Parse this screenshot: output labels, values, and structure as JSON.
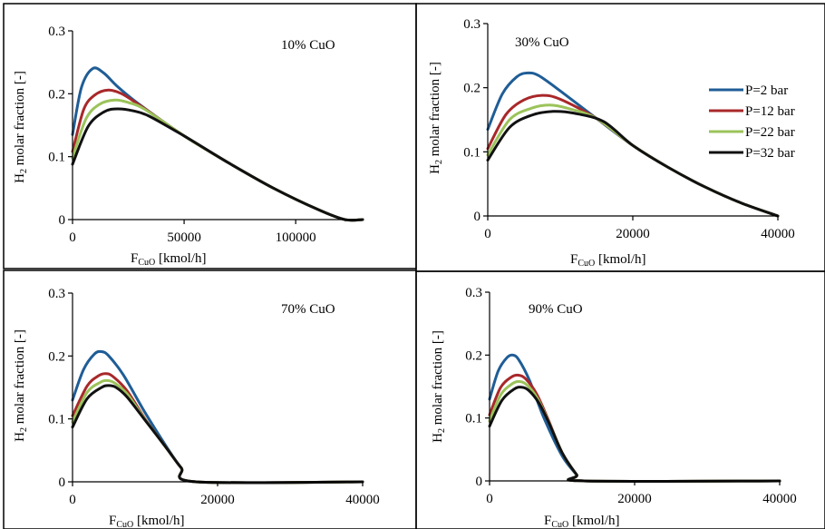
{
  "chart_data": [
    {
      "type": "line",
      "annotation": "10% CuO",
      "ylabel_main": "H",
      "ylabel_sub": "2",
      "ylabel_rest": " molar fraction [-]",
      "xlabel_main": "F",
      "xlabel_sub": "CuO",
      "xlabel_rest": " [kmol/h]",
      "xlim": [
        0,
        130000
      ],
      "ylim": [
        0,
        0.3
      ],
      "xticks": [
        0,
        50000,
        100000
      ],
      "xtick_labels": [
        "0",
        "50000",
        "100000"
      ],
      "yticks": [
        0,
        0.1,
        0.2,
        0.3
      ],
      "ytick_labels": [
        "0",
        "0.1",
        "0.2",
        "0.3"
      ],
      "grid": false,
      "series": [
        {
          "name": "P=2 bar",
          "color": "#1f5d96",
          "points": [
            [
              0,
              0.135
            ],
            [
              4000,
              0.21
            ],
            [
              9000,
              0.24
            ],
            [
              14000,
              0.233
            ],
            [
              20000,
              0.212
            ],
            [
              30000,
              0.183
            ],
            [
              50000,
              0.133
            ],
            [
              70000,
              0.09
            ],
            [
              90000,
              0.05
            ],
            [
              110000,
              0.016
            ],
            [
              122000,
              0
            ],
            [
              130000,
              0
            ]
          ]
        },
        {
          "name": "P=12 bar",
          "color": "#a8282a",
          "points": [
            [
              0,
              0.108
            ],
            [
              5000,
              0.175
            ],
            [
              10000,
              0.198
            ],
            [
              16000,
              0.206
            ],
            [
              22000,
              0.2
            ],
            [
              30000,
              0.182
            ],
            [
              50000,
              0.133
            ],
            [
              70000,
              0.09
            ],
            [
              90000,
              0.05
            ],
            [
              110000,
              0.016
            ],
            [
              122000,
              0
            ],
            [
              130000,
              0
            ]
          ]
        },
        {
          "name": "P=22 bar",
          "color": "#9bc35a",
          "points": [
            [
              0,
              0.098
            ],
            [
              6000,
              0.16
            ],
            [
              12000,
              0.183
            ],
            [
              19000,
              0.19
            ],
            [
              25000,
              0.186
            ],
            [
              32000,
              0.176
            ],
            [
              50000,
              0.133
            ],
            [
              70000,
              0.09
            ],
            [
              90000,
              0.05
            ],
            [
              110000,
              0.016
            ],
            [
              122000,
              0
            ],
            [
              130000,
              0
            ]
          ]
        },
        {
          "name": "P=32 bar",
          "color": "#111111",
          "points": [
            [
              0,
              0.088
            ],
            [
              7000,
              0.148
            ],
            [
              14000,
              0.171
            ],
            [
              20000,
              0.176
            ],
            [
              27000,
              0.173
            ],
            [
              34000,
              0.165
            ],
            [
              50000,
              0.133
            ],
            [
              70000,
              0.09
            ],
            [
              90000,
              0.05
            ],
            [
              110000,
              0.016
            ],
            [
              122000,
              0
            ],
            [
              130000,
              0
            ]
          ]
        }
      ]
    },
    {
      "type": "line",
      "annotation": "30% CuO",
      "ylabel_main": "H",
      "ylabel_sub": "2",
      "ylabel_rest": " molar fraction [-]",
      "xlabel_main": "F",
      "xlabel_sub": "CuO",
      "xlabel_rest": " [kmol/h]",
      "xlim": [
        0,
        40000
      ],
      "ylim": [
        0,
        0.3
      ],
      "xticks": [
        0,
        20000,
        40000
      ],
      "xtick_labels": [
        "0",
        "20000",
        "40000"
      ],
      "yticks": [
        0,
        0.1,
        0.2,
        0.3
      ],
      "ytick_labels": [
        "0",
        "0.1",
        "0.2",
        "0.3"
      ],
      "grid": false,
      "legend": {
        "placement": "right",
        "entries": [
          "P=2 bar",
          "P=12 bar",
          "P=22 bar",
          "P=32 bar"
        ]
      },
      "series": [
        {
          "name": "P=2 bar",
          "color": "#1f5d96",
          "points": [
            [
              0,
              0.135
            ],
            [
              2000,
              0.19
            ],
            [
              4000,
              0.217
            ],
            [
              5500,
              0.223
            ],
            [
              7000,
              0.219
            ],
            [
              10000,
              0.195
            ],
            [
              15000,
              0.152
            ],
            [
              20000,
              0.11
            ],
            [
              25000,
              0.075
            ],
            [
              30000,
              0.045
            ],
            [
              35000,
              0.02
            ],
            [
              40000,
              0
            ]
          ]
        },
        {
          "name": "P=12 bar",
          "color": "#a8282a",
          "points": [
            [
              0,
              0.105
            ],
            [
              2500,
              0.158
            ],
            [
              5000,
              0.181
            ],
            [
              7500,
              0.188
            ],
            [
              10000,
              0.182
            ],
            [
              15000,
              0.152
            ],
            [
              20000,
              0.11
            ],
            [
              25000,
              0.075
            ],
            [
              30000,
              0.045
            ],
            [
              35000,
              0.02
            ],
            [
              40000,
              0
            ]
          ]
        },
        {
          "name": "P=22 bar",
          "color": "#9bc35a",
          "points": [
            [
              0,
              0.095
            ],
            [
              3000,
              0.15
            ],
            [
              6000,
              0.168
            ],
            [
              8500,
              0.173
            ],
            [
              11000,
              0.168
            ],
            [
              15000,
              0.152
            ],
            [
              20000,
              0.11
            ],
            [
              25000,
              0.075
            ],
            [
              30000,
              0.045
            ],
            [
              35000,
              0.02
            ],
            [
              40000,
              0
            ]
          ]
        },
        {
          "name": "P=32 bar",
          "color": "#111111",
          "points": [
            [
              0,
              0.087
            ],
            [
              3000,
              0.138
            ],
            [
              6000,
              0.157
            ],
            [
              9000,
              0.163
            ],
            [
              12000,
              0.16
            ],
            [
              16000,
              0.147
            ],
            [
              20000,
              0.11
            ],
            [
              25000,
              0.075
            ],
            [
              30000,
              0.045
            ],
            [
              35000,
              0.02
            ],
            [
              40000,
              0
            ]
          ]
        }
      ]
    },
    {
      "type": "line",
      "annotation": "70% CuO",
      "ylabel_main": "H",
      "ylabel_sub": "2",
      "ylabel_rest": " molar fraction [-]",
      "xlabel_main": "F",
      "xlabel_sub": "CuO",
      "xlabel_rest": " [kmol/h]",
      "xlim": [
        0,
        40000
      ],
      "ylim": [
        0,
        0.3
      ],
      "xticks": [
        0,
        20000,
        40000
      ],
      "xtick_labels": [
        "0",
        "20000",
        "40000"
      ],
      "yticks": [
        0,
        0.1,
        0.2,
        0.3
      ],
      "ytick_labels": [
        "0",
        "0.1",
        "0.2",
        "0.3"
      ],
      "grid": false,
      "series": [
        {
          "name": "P=2 bar",
          "color": "#1f5d96",
          "points": [
            [
              0,
              0.13
            ],
            [
              1500,
              0.178
            ],
            [
              3000,
              0.203
            ],
            [
              4000,
              0.207
            ],
            [
              5000,
              0.2
            ],
            [
              7000,
              0.17
            ],
            [
              10000,
              0.11
            ],
            [
              13000,
              0.055
            ],
            [
              15000,
              0.022
            ],
            [
              17000,
              0
            ],
            [
              40000,
              0
            ]
          ]
        },
        {
          "name": "P=12 bar",
          "color": "#a8282a",
          "points": [
            [
              0,
              0.105
            ],
            [
              2000,
              0.152
            ],
            [
              3500,
              0.168
            ],
            [
              4500,
              0.172
            ],
            [
              5500,
              0.168
            ],
            [
              7500,
              0.145
            ],
            [
              10000,
              0.1
            ],
            [
              13000,
              0.053
            ],
            [
              15000,
              0.022
            ],
            [
              17000,
              0
            ],
            [
              40000,
              0
            ]
          ]
        },
        {
          "name": "P=22 bar",
          "color": "#9bc35a",
          "points": [
            [
              0,
              0.095
            ],
            [
              2000,
              0.142
            ],
            [
              3800,
              0.158
            ],
            [
              4800,
              0.161
            ],
            [
              5800,
              0.157
            ],
            [
              7500,
              0.14
            ],
            [
              10000,
              0.099
            ],
            [
              13000,
              0.053
            ],
            [
              15000,
              0.022
            ],
            [
              17000,
              0
            ],
            [
              40000,
              0
            ]
          ]
        },
        {
          "name": "P=32 bar",
          "color": "#111111",
          "points": [
            [
              0,
              0.087
            ],
            [
              2000,
              0.132
            ],
            [
              4000,
              0.15
            ],
            [
              5000,
              0.153
            ],
            [
              6000,
              0.15
            ],
            [
              7500,
              0.135
            ],
            [
              10000,
              0.098
            ],
            [
              13000,
              0.053
            ],
            [
              15000,
              0.022
            ],
            [
              17000,
              0
            ],
            [
              40000,
              0
            ]
          ]
        }
      ]
    },
    {
      "type": "line",
      "annotation": "90% CuO",
      "ylabel_main": "H",
      "ylabel_sub": "2",
      "ylabel_rest": " molar fraction [-]",
      "xlabel_main": "F",
      "xlabel_sub": "CuO",
      "xlabel_rest": " [kmol/h]",
      "xlim": [
        0,
        40000
      ],
      "ylim": [
        0,
        0.3
      ],
      "xticks": [
        0,
        20000,
        40000
      ],
      "xtick_labels": [
        "0",
        "20000",
        "40000"
      ],
      "yticks": [
        0,
        0.1,
        0.2,
        0.3
      ],
      "ytick_labels": [
        "0",
        "0.1",
        "0.2",
        "0.3"
      ],
      "grid": false,
      "series": [
        {
          "name": "P=2 bar",
          "color": "#1f5d96",
          "points": [
            [
              0,
              0.13
            ],
            [
              1200,
              0.175
            ],
            [
              2400,
              0.196
            ],
            [
              3200,
              0.2
            ],
            [
              4000,
              0.193
            ],
            [
              5500,
              0.16
            ],
            [
              7500,
              0.1
            ],
            [
              10000,
              0.04
            ],
            [
              12000,
              0.01
            ],
            [
              13000,
              0
            ],
            [
              40000,
              0
            ]
          ]
        },
        {
          "name": "P=12 bar",
          "color": "#a8282a",
          "points": [
            [
              0,
              0.105
            ],
            [
              1500,
              0.148
            ],
            [
              3000,
              0.165
            ],
            [
              4000,
              0.168
            ],
            [
              5000,
              0.162
            ],
            [
              6500,
              0.138
            ],
            [
              8000,
              0.1
            ],
            [
              10000,
              0.045
            ],
            [
              12000,
              0.01
            ],
            [
              13000,
              0
            ],
            [
              40000,
              0
            ]
          ]
        },
        {
          "name": "P=22 bar",
          "color": "#9bc35a",
          "points": [
            [
              0,
              0.095
            ],
            [
              1600,
              0.138
            ],
            [
              3200,
              0.155
            ],
            [
              4200,
              0.158
            ],
            [
              5200,
              0.152
            ],
            [
              6500,
              0.133
            ],
            [
              8000,
              0.098
            ],
            [
              10000,
              0.045
            ],
            [
              12000,
              0.01
            ],
            [
              13000,
              0
            ],
            [
              40000,
              0
            ]
          ]
        },
        {
          "name": "P=32 bar",
          "color": "#111111",
          "points": [
            [
              0,
              0.087
            ],
            [
              1700,
              0.128
            ],
            [
              3400,
              0.146
            ],
            [
              4400,
              0.149
            ],
            [
              5400,
              0.144
            ],
            [
              6800,
              0.124
            ],
            [
              8200,
              0.092
            ],
            [
              10000,
              0.045
            ],
            [
              12000,
              0.01
            ],
            [
              13000,
              0
            ],
            [
              40000,
              0
            ]
          ]
        }
      ]
    }
  ]
}
